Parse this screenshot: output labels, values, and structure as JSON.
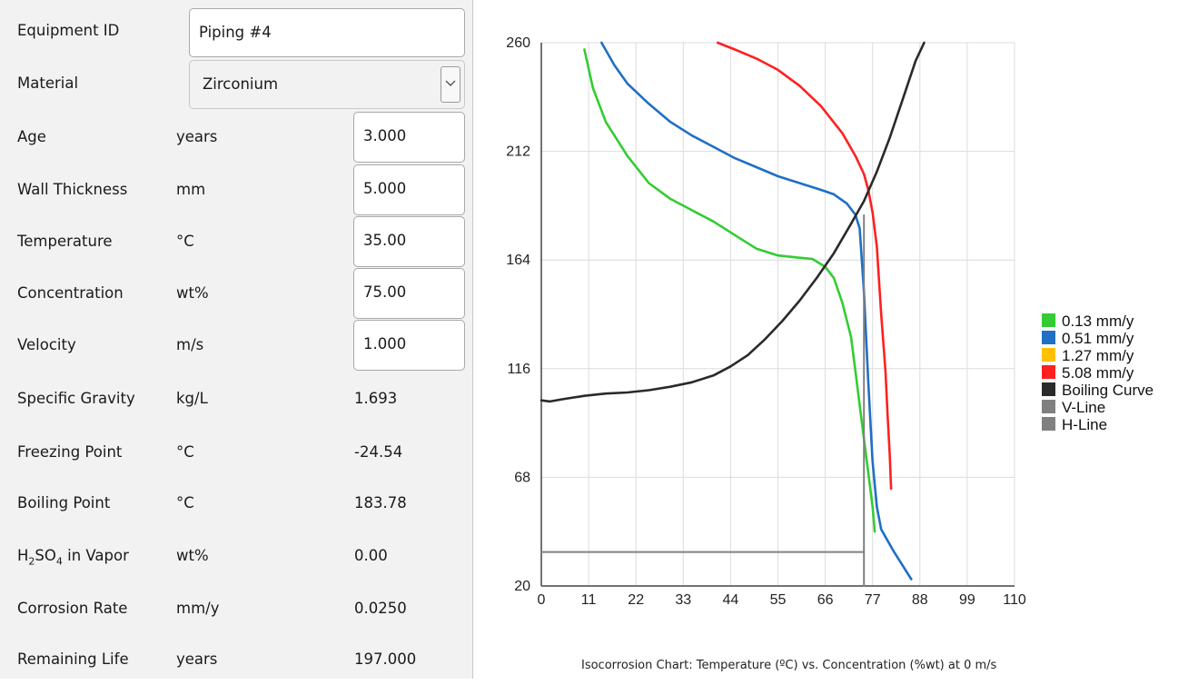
{
  "form": {
    "equipment_id": {
      "label": "Equipment ID",
      "value": "Piping #4"
    },
    "material": {
      "label": "Material",
      "value": "Zirconium"
    },
    "age": {
      "label": "Age",
      "unit": "years",
      "value": "3.000"
    },
    "wall_thickness": {
      "label": "Wall Thickness",
      "unit": "mm",
      "value": "5.000"
    },
    "temperature": {
      "label": "Temperature",
      "unit": "°C",
      "value": "35.00"
    },
    "concentration": {
      "label": "Concentration",
      "unit": "wt%",
      "value": "75.00"
    },
    "velocity": {
      "label": "Velocity",
      "unit": "m/s",
      "value": "1.000"
    }
  },
  "results": {
    "specific_gravity": {
      "label": "Specific Gravity",
      "unit": "kg/L",
      "value": "1.693"
    },
    "freezing_point": {
      "label": "Freezing Point",
      "unit": "°C",
      "value": "-24.54"
    },
    "boiling_point": {
      "label": "Boiling Point",
      "unit": "°C",
      "value": "183.78"
    },
    "h2so4_vapor": {
      "label_main": "H",
      "sub1": "2",
      "label_mid": "SO",
      "sub2": "4",
      "label_end": " in Vapor",
      "unit": "wt%",
      "value": "0.00"
    },
    "corrosion_rate": {
      "label": "Corrosion Rate",
      "unit": "mm/y",
      "value": "0.0250"
    },
    "remaining_life": {
      "label": "Remaining Life",
      "unit": "years",
      "value": "197.000"
    }
  },
  "chart_data": {
    "type": "line",
    "title": "Isocorrosion Chart: Temperature (ºC) vs. Concentration (%wt) at 0 m/s",
    "xlim": [
      0,
      110
    ],
    "ylim": [
      20,
      260
    ],
    "xticks": [
      "0",
      "11",
      "22",
      "33",
      "44",
      "55",
      "66",
      "77",
      "88",
      "99",
      "110"
    ],
    "yticks": [
      "20",
      "68",
      "116",
      "164",
      "212",
      "260"
    ],
    "grid": true,
    "legend_position": "right",
    "series": [
      {
        "name": "0.13 mm/y",
        "color": "#33cc33",
        "points": [
          [
            10,
            257
          ],
          [
            12,
            240
          ],
          [
            15,
            225
          ],
          [
            20,
            210
          ],
          [
            25,
            198
          ],
          [
            30,
            191
          ],
          [
            35,
            186
          ],
          [
            40,
            181
          ],
          [
            45,
            175
          ],
          [
            50,
            169
          ],
          [
            55,
            166
          ],
          [
            60,
            165
          ],
          [
            63,
            164.5
          ],
          [
            66,
            161
          ],
          [
            68,
            156
          ],
          [
            70,
            145
          ],
          [
            72,
            130
          ],
          [
            73,
            115
          ],
          [
            74,
            100
          ],
          [
            75,
            85
          ],
          [
            76,
            70
          ],
          [
            77,
            55
          ],
          [
            77.5,
            44
          ]
        ]
      },
      {
        "name": "0.51 mm/y",
        "color": "#1f6fc5",
        "points": [
          [
            14,
            260
          ],
          [
            17,
            250
          ],
          [
            20,
            242
          ],
          [
            25,
            233
          ],
          [
            30,
            225
          ],
          [
            35,
            219
          ],
          [
            40,
            214
          ],
          [
            45,
            209
          ],
          [
            50,
            205
          ],
          [
            55,
            201
          ],
          [
            60,
            198
          ],
          [
            65,
            195
          ],
          [
            68,
            193
          ],
          [
            71,
            189
          ],
          [
            73,
            184
          ],
          [
            74,
            178
          ],
          [
            75,
            150
          ],
          [
            76,
            110
          ],
          [
            77,
            75
          ],
          [
            78,
            55
          ],
          [
            79,
            45
          ],
          [
            82,
            35
          ],
          [
            86,
            23
          ]
        ]
      },
      {
        "name": "1.27 mm/y",
        "color": "#ffc000",
        "points": []
      },
      {
        "name": "5.08 mm/y",
        "color": "#ff2020",
        "points": [
          [
            41,
            260
          ],
          [
            45,
            257
          ],
          [
            50,
            253
          ],
          [
            55,
            248
          ],
          [
            60,
            241
          ],
          [
            65,
            232
          ],
          [
            70,
            220
          ],
          [
            73,
            210
          ],
          [
            75,
            202
          ],
          [
            76,
            195
          ],
          [
            77,
            185
          ],
          [
            78,
            170
          ],
          [
            79,
            140
          ],
          [
            80,
            115
          ],
          [
            80.5,
            95
          ],
          [
            81,
            78
          ],
          [
            81.3,
            63
          ]
        ]
      },
      {
        "name": "Boiling Curve",
        "color": "#2a2a2a",
        "points": [
          [
            0,
            102
          ],
          [
            2,
            101.5
          ],
          [
            5,
            102.5
          ],
          [
            10,
            104
          ],
          [
            15,
            105
          ],
          [
            20,
            105.5
          ],
          [
            25,
            106.5
          ],
          [
            30,
            108
          ],
          [
            35,
            110
          ],
          [
            40,
            113
          ],
          [
            44,
            117
          ],
          [
            48,
            122
          ],
          [
            52,
            129
          ],
          [
            56,
            137
          ],
          [
            60,
            146
          ],
          [
            64,
            156
          ],
          [
            68,
            167
          ],
          [
            72,
            180
          ],
          [
            75,
            190
          ],
          [
            78,
            203
          ],
          [
            81,
            218
          ],
          [
            84,
            235
          ],
          [
            87,
            252
          ],
          [
            89,
            260
          ]
        ]
      },
      {
        "name": "V-Line",
        "color": "#808080",
        "points": [
          [
            75,
            20
          ],
          [
            75,
            183.78
          ]
        ]
      },
      {
        "name": "H-Line",
        "color": "#808080",
        "points": [
          [
            0,
            35
          ],
          [
            75,
            35
          ]
        ]
      }
    ]
  }
}
